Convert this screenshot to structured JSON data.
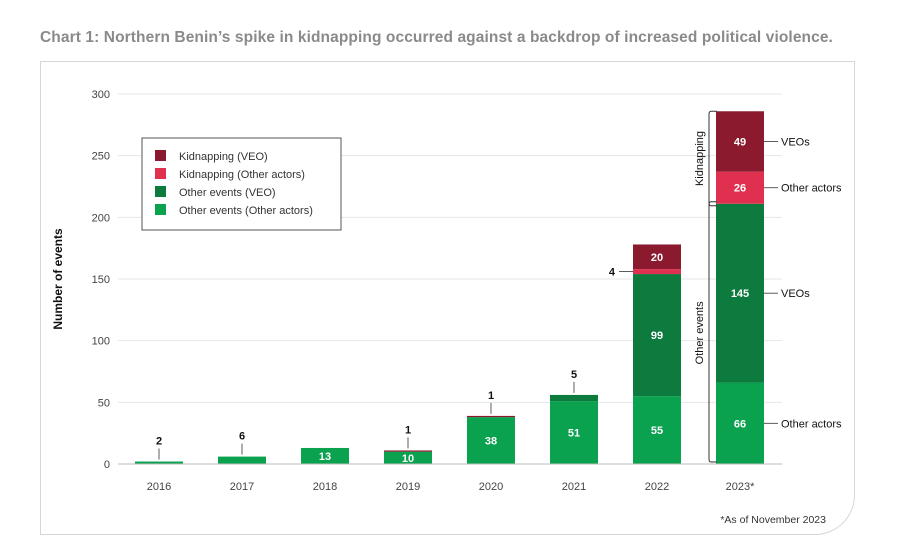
{
  "title": "Chart 1: Northern Benin’s spike in kidnapping occurred against a backdrop of increased political violence.",
  "footnote": "*As of November 2023",
  "colors": {
    "kidnap_veo": "#8b1a2f",
    "kidnap_other": "#e0304f",
    "other_veo": "#0d7a3e",
    "other_other": "#0aa14f"
  },
  "chart_data": {
    "type": "bar",
    "stacked": true,
    "categories": [
      "2016",
      "2017",
      "2018",
      "2019",
      "2020",
      "2021",
      "2022",
      "2023*"
    ],
    "series": [
      {
        "name": "Other events  (Other actors)",
        "key": "other_other",
        "values": [
          2,
          6,
          13,
          10,
          38,
          51,
          55,
          66
        ]
      },
      {
        "name": "Other events (VEO)",
        "key": "other_veo",
        "values": [
          0,
          0,
          0,
          0,
          0,
          5,
          99,
          145
        ]
      },
      {
        "name": "Kidnapping (Other actors)",
        "key": "kidnap_other",
        "values": [
          0,
          0,
          0,
          0,
          0,
          0,
          4,
          26
        ]
      },
      {
        "name": "Kidnapping (VEO)",
        "key": "kidnap_veo",
        "values": [
          0,
          0,
          0,
          1,
          1,
          0,
          20,
          49
        ]
      }
    ],
    "legend_order": [
      "Kidnapping (VEO)",
      "Kidnapping (Other actors)",
      "Other events (VEO)",
      "Other events  (Other actors)"
    ],
    "ylabel": "Number of events",
    "xlabel": "",
    "ylim": [
      0,
      300
    ],
    "yticks": [
      0,
      50,
      100,
      150,
      200,
      250,
      300
    ],
    "grid": true,
    "legend_position": "top-left",
    "annotations": {
      "group_kidnapping": "Kidnapping",
      "group_other_events": "Other events",
      "side_veos": "VEOs",
      "side_other_actors": "Other actors"
    }
  }
}
